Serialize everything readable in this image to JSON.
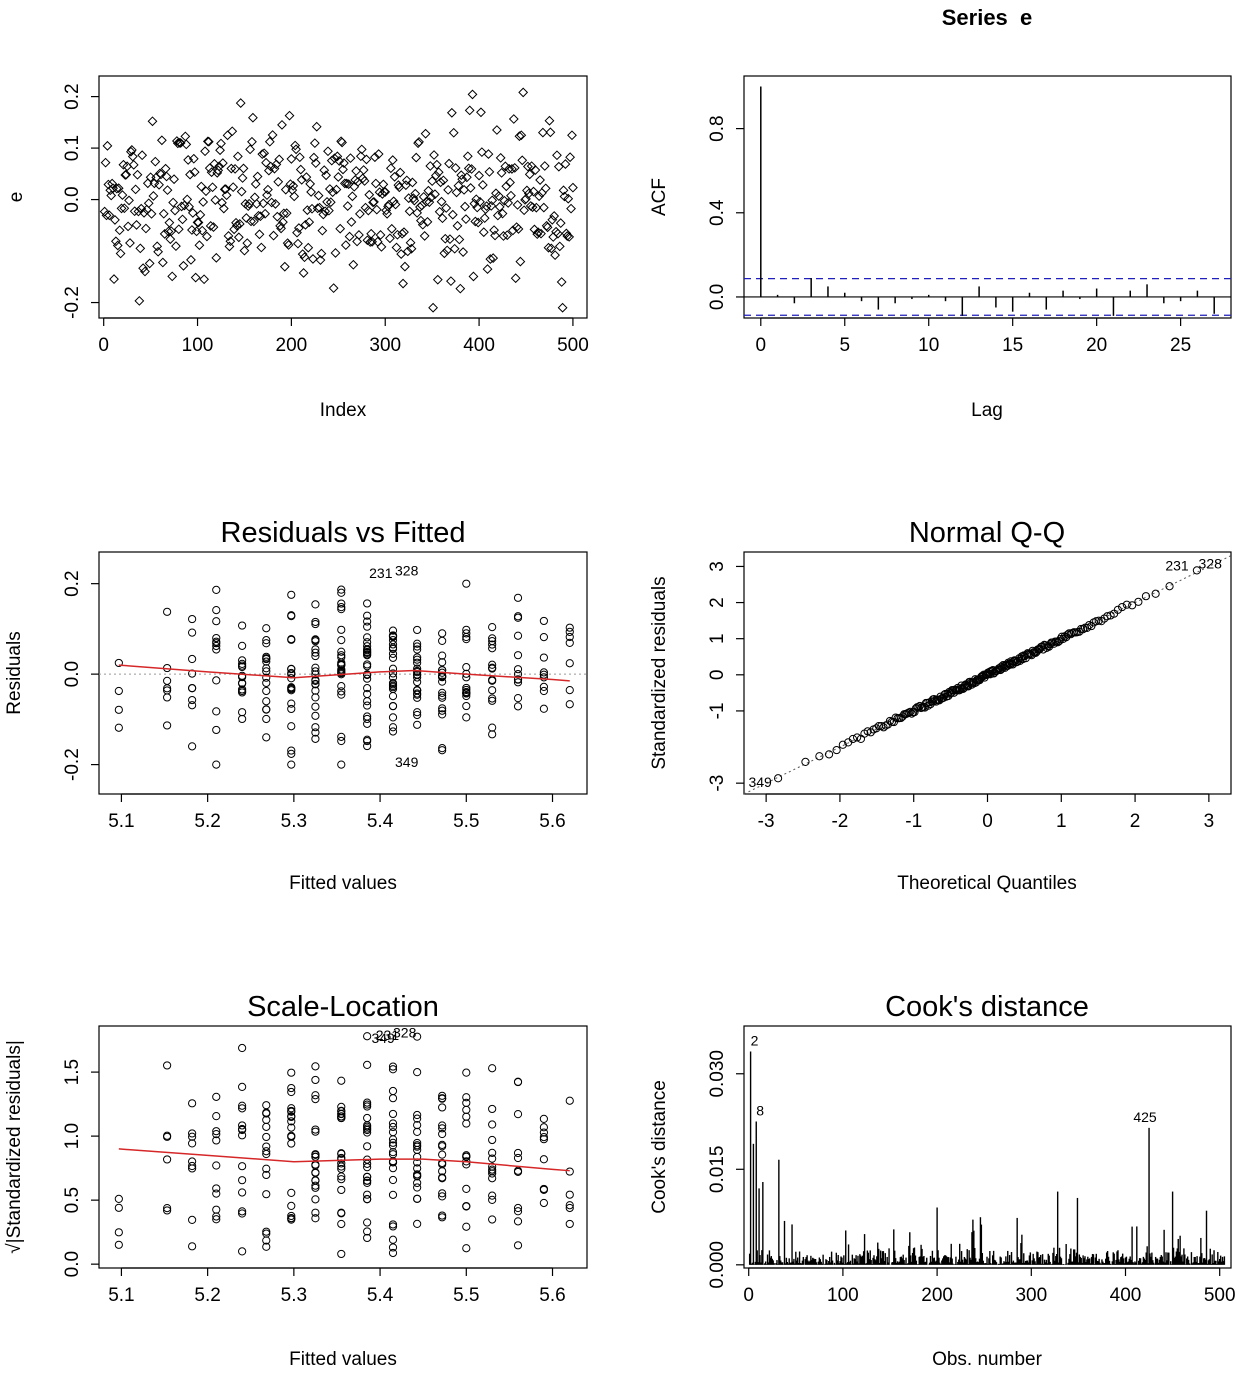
{
  "chart_data": [
    {
      "id": "index-plot",
      "type": "scatter",
      "title": "",
      "xlabel": "Index",
      "ylabel": "e",
      "xlim": [
        -5,
        515
      ],
      "ylim": [
        -0.23,
        0.24
      ],
      "xticks": [
        0,
        100,
        200,
        300,
        400,
        500
      ],
      "xtick_labels": [
        "0",
        "100",
        "200",
        "300",
        "400",
        "500"
      ],
      "yticks": [
        -0.2,
        0.0,
        0.1,
        0.2
      ],
      "ytick_labels": [
        "-0.2",
        "0.0",
        "0.1",
        "0.2"
      ],
      "n_points": 500,
      "point_range": [
        -0.21,
        0.22
      ]
    },
    {
      "id": "acf-plot",
      "type": "bar",
      "title": "Series  e",
      "xlabel": "Lag",
      "ylabel": "ACF",
      "xlim": [
        -1,
        28
      ],
      "ylim": [
        -0.1,
        1.05
      ],
      "xticks": [
        0,
        5,
        10,
        15,
        20,
        25
      ],
      "xtick_labels": [
        "0",
        "5",
        "10",
        "15",
        "20",
        "25"
      ],
      "yticks": [
        0.0,
        0.4,
        0.8
      ],
      "ytick_labels": [
        "0.0",
        "0.4",
        "0.8"
      ],
      "ci": 0.087,
      "lags": [
        0,
        1,
        2,
        3,
        4,
        5,
        6,
        7,
        8,
        9,
        10,
        11,
        12,
        13,
        14,
        15,
        16,
        17,
        18,
        19,
        20,
        21,
        22,
        23,
        24,
        25,
        26,
        27
      ],
      "acf": [
        1.0,
        0.01,
        -0.03,
        0.09,
        0.05,
        0.02,
        -0.02,
        -0.06,
        -0.03,
        -0.01,
        0.01,
        -0.02,
        -0.09,
        0.05,
        -0.05,
        -0.07,
        0.02,
        -0.06,
        0.03,
        -0.01,
        0.04,
        -0.09,
        0.03,
        0.06,
        -0.03,
        -0.02,
        0.03,
        -0.08
      ]
    },
    {
      "id": "residuals-vs-fitted",
      "type": "scatter",
      "title": "Residuals vs Fitted",
      "xlabel": "Fitted values",
      "ylabel": "Residuals",
      "xlim": [
        5.074,
        5.64
      ],
      "ylim": [
        -0.265,
        0.27
      ],
      "xticks": [
        5.1,
        5.2,
        5.3,
        5.4,
        5.5,
        5.6
      ],
      "xtick_labels": [
        "5.1",
        "5.2",
        "5.3",
        "5.4",
        "5.5",
        "5.6"
      ],
      "yticks": [
        -0.2,
        0.0,
        0.2
      ],
      "ytick_labels": [
        "-0.2",
        "0.0",
        "0.2"
      ],
      "fitted_levels": [
        5.097,
        5.153,
        5.182,
        5.21,
        5.24,
        5.268,
        5.297,
        5.325,
        5.355,
        5.385,
        5.415,
        5.443,
        5.472,
        5.5,
        5.53,
        5.56,
        5.59,
        5.62
      ],
      "smoother": {
        "x": [
          5.097,
          5.2,
          5.3,
          5.4,
          5.44,
          5.5,
          5.6,
          5.62
        ],
        "y": [
          0.02,
          0.005,
          -0.008,
          0.005,
          0.008,
          0.0,
          -0.012,
          -0.015
        ]
      },
      "labels": [
        {
          "text": "231",
          "x": 5.385,
          "y": 0.212
        },
        {
          "text": "328",
          "x": 5.415,
          "y": 0.218
        },
        {
          "text": "349",
          "x": 5.415,
          "y": -0.205
        }
      ]
    },
    {
      "id": "normal-qq",
      "type": "scatter",
      "title": "Normal Q-Q",
      "xlabel": "Theoretical Quantiles",
      "ylabel": "Standardized residuals",
      "xlim": [
        -3.3,
        3.3
      ],
      "ylim": [
        -3.3,
        3.4
      ],
      "xticks": [
        -3,
        -2,
        -1,
        0,
        1,
        2,
        3
      ],
      "xtick_labels": [
        "-3",
        "-2",
        "-1",
        "0",
        "1",
        "2",
        "3"
      ],
      "yticks": [
        -3,
        -1,
        0,
        1,
        2,
        3
      ],
      "ytick_labels": [
        "-3",
        "-1",
        "0",
        "1",
        "2",
        "3"
      ],
      "labels": [
        {
          "text": "231",
          "x": 2.6,
          "y": 3.0
        },
        {
          "text": "328",
          "x": 3.05,
          "y": 3.05
        },
        {
          "text": "349",
          "x": -3.05,
          "y": -3.0
        }
      ]
    },
    {
      "id": "scale-location",
      "type": "scatter",
      "title": "Scale-Location",
      "xlabel": "Fitted values",
      "ylabel": "√|Standardized residuals|",
      "xlim": [
        5.074,
        5.64
      ],
      "ylim": [
        -0.03,
        1.86
      ],
      "xticks": [
        5.1,
        5.2,
        5.3,
        5.4,
        5.5,
        5.6
      ],
      "xtick_labels": [
        "5.1",
        "5.2",
        "5.3",
        "5.4",
        "5.5",
        "5.6"
      ],
      "yticks": [
        0.0,
        0.5,
        1.0,
        1.5
      ],
      "ytick_labels": [
        "0.0",
        "0.5",
        "1.0",
        "1.5"
      ],
      "smoother": {
        "x": [
          5.097,
          5.2,
          5.3,
          5.4,
          5.45,
          5.5,
          5.6,
          5.62
        ],
        "y": [
          0.9,
          0.85,
          0.8,
          0.82,
          0.82,
          0.8,
          0.74,
          0.73
        ]
      },
      "labels": [
        {
          "text": "349",
          "x": 5.39,
          "y": 1.76
        },
        {
          "text": "231",
          "x": 5.395,
          "y": 1.78
        },
        {
          "text": "328",
          "x": 5.415,
          "y": 1.8
        }
      ]
    },
    {
      "id": "cooks-distance",
      "type": "bar",
      "title": "Cook's distance",
      "xlabel": "Obs. number",
      "ylabel": "Cook's distance",
      "xlim": [
        -5,
        512
      ],
      "ylim": [
        -0.0005,
        0.0375
      ],
      "xticks": [
        0,
        100,
        200,
        300,
        400,
        500
      ],
      "xtick_labels": [
        "0",
        "100",
        "200",
        "300",
        "400",
        "500"
      ],
      "yticks": [
        0.0,
        0.015,
        0.03
      ],
      "ytick_labels": [
        "0.000",
        "0.015",
        "0.030"
      ],
      "n_obs": 505,
      "labels": [
        {
          "text": "2",
          "x": 2,
          "y": 0.0335
        },
        {
          "text": "8",
          "x": 8,
          "y": 0.0225
        },
        {
          "text": "425",
          "x": 425,
          "y": 0.0215
        }
      ],
      "highlights": [
        {
          "x": 2,
          "y": 0.0335
        },
        {
          "x": 5,
          "y": 0.019
        },
        {
          "x": 8,
          "y": 0.0225
        },
        {
          "x": 11,
          "y": 0.012
        },
        {
          "x": 15,
          "y": 0.013
        },
        {
          "x": 32,
          "y": 0.0165
        },
        {
          "x": 200,
          "y": 0.009
        },
        {
          "x": 328,
          "y": 0.0115
        },
        {
          "x": 349,
          "y": 0.0105
        },
        {
          "x": 425,
          "y": 0.0215
        },
        {
          "x": 450,
          "y": 0.0115
        },
        {
          "x": 486,
          "y": 0.0085
        }
      ]
    }
  ]
}
